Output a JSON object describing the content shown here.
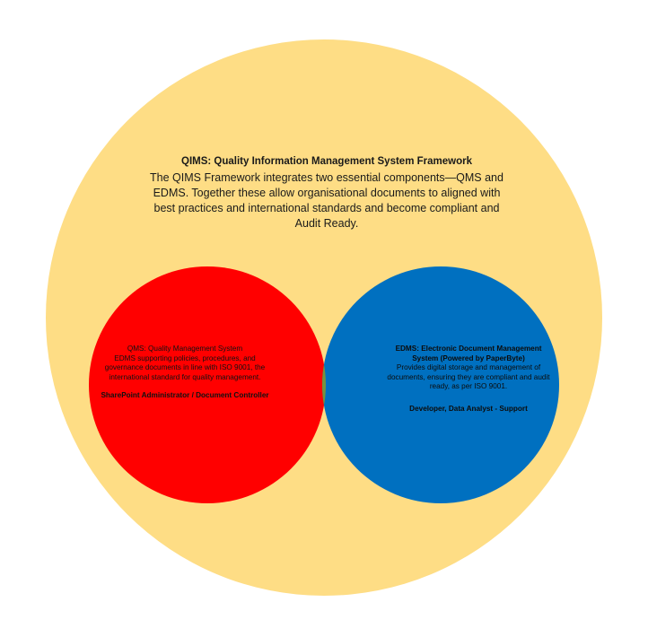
{
  "outer_circle": {
    "title": "QIMS: Quality Information Management System Framework",
    "description": "The QIMS Framework integrates two essential components—QMS and EDMS. Together these allow organisational documents to aligned with best practices and international standards and become compliant and Audit Ready.",
    "color": "#fedd85"
  },
  "qms_circle": {
    "title": "QMS: Quality Management System",
    "description": "EDMS supporting policies, procedures, and governance documents in line with ISO 9001, the international standard for quality management.",
    "role": "SharePoint Administrator / Document Controller",
    "color": "#ff0000"
  },
  "edms_circle": {
    "title": "EDMS: Electronic Document Management System (Powered by PaperByte)",
    "description": "Provides digital storage and management of documents, ensuring they are compliant and audit ready, as per ISO 9001.",
    "role": "Developer, Data Analyst - Support",
    "color": "#0070c0"
  },
  "overlap": {
    "color": "#77933c"
  }
}
